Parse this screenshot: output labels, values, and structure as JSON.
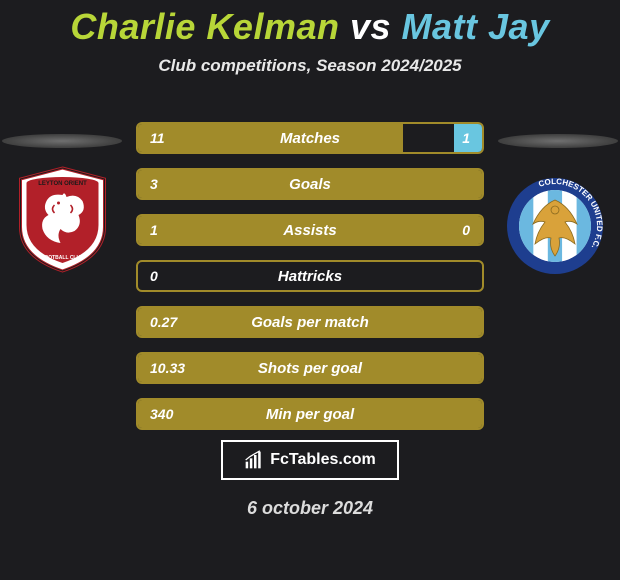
{
  "title": {
    "player1": "Charlie Kelman",
    "vs": "vs",
    "player2": "Matt Jay"
  },
  "subtitle": "Club competitions, Season 2024/2025",
  "colors": {
    "title_p1": "#b8d638",
    "title_vs": "#ffffff",
    "title_p2": "#69c6e0",
    "bar_border": "#a18b2a",
    "bar_fill": "#a18b2a",
    "right_accent": "#69c6e0"
  },
  "stats": [
    {
      "label": "Matches",
      "l": "11",
      "r": "1",
      "l_pct": 77,
      "r_pct": 8
    },
    {
      "label": "Goals",
      "l": "3",
      "r": "",
      "l_pct": 100,
      "r_pct": 0
    },
    {
      "label": "Assists",
      "l": "1",
      "r": "0",
      "l_pct": 100,
      "r_pct": 0
    },
    {
      "label": "Hattricks",
      "l": "0",
      "r": "",
      "l_pct": 0,
      "r_pct": 0
    },
    {
      "label": "Goals per match",
      "l": "0.27",
      "r": "",
      "l_pct": 100,
      "r_pct": 0
    },
    {
      "label": "Shots per goal",
      "l": "10.33",
      "r": "",
      "l_pct": 100,
      "r_pct": 0
    },
    {
      "label": "Min per goal",
      "l": "340",
      "r": "",
      "l_pct": 100,
      "r_pct": 0
    }
  ],
  "crest_left": {
    "name": "Leyton Orient",
    "shield_fill": "#ffffff",
    "shield_border": "#b22029",
    "inner_fill": "#b22029",
    "dragon_fill": "#ffffff"
  },
  "crest_right": {
    "name": "Colchester United FC",
    "ring_fill": "#1e3e8f",
    "ring_text_fill": "#ffffff",
    "stripes": [
      "#6bb8e0",
      "#ffffff",
      "#6bb8e0",
      "#ffffff",
      "#6bb8e0"
    ],
    "eagle_fill": "#d9a23a"
  },
  "footer": {
    "brand": "FcTables.com",
    "date": "6 october 2024"
  }
}
